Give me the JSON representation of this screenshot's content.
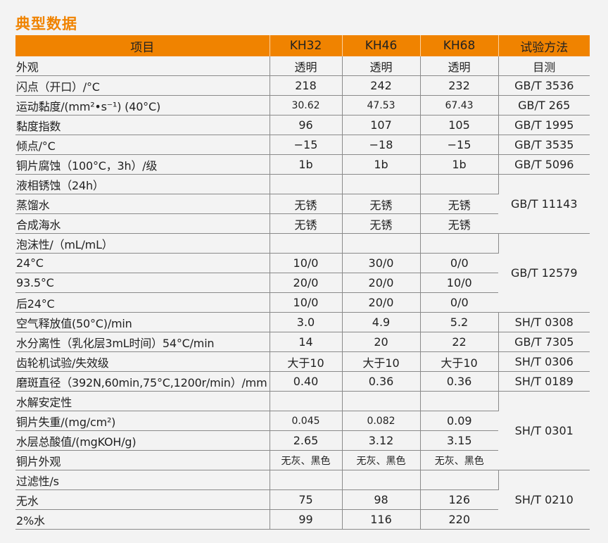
{
  "title": "典型数据",
  "colors": {
    "accent": "#f08300",
    "background": "#f3f3f3"
  },
  "table": {
    "headers": [
      "项目",
      "KH32",
      "KH46",
      "KH68",
      "试验方法"
    ],
    "rows": [
      {
        "item": "外观",
        "values": [
          "透明",
          "透明",
          "透明"
        ],
        "method": "目测"
      },
      {
        "item": "闪点（开口）/°C",
        "values": [
          "218",
          "242",
          "232"
        ],
        "method": "GB/T 3536"
      },
      {
        "item": "运动黏度/(mm²•s⁻¹) (40°C)",
        "values": [
          "30.62",
          "47.53",
          "67.43"
        ],
        "method": "GB/T 265"
      },
      {
        "item": "黏度指数",
        "values": [
          "96",
          "107",
          "105"
        ],
        "method": "GB/T 1995"
      },
      {
        "item": "倾点/°C",
        "values": [
          "−15",
          "−18",
          "−15"
        ],
        "method": "GB/T 3535"
      },
      {
        "item": "铜片腐蚀（100°C，3h）/级",
        "values": [
          "1b",
          "1b",
          "1b"
        ],
        "method": "GB/T 5096"
      },
      {
        "item": "液相锈蚀（24h）",
        "values": [
          "",
          "",
          ""
        ],
        "method": "GB/T 11143"
      },
      {
        "item": "蒸馏水",
        "values": [
          "无锈",
          "无锈",
          "无锈"
        ],
        "method": null
      },
      {
        "item": "合成海水",
        "values": [
          "无锈",
          "无锈",
          "无锈"
        ],
        "method": null
      },
      {
        "item": "泡沫性/（mL/mL）",
        "values": [
          "",
          "",
          ""
        ],
        "method": "GB/T 12579"
      },
      {
        "item": "24°C",
        "values": [
          "10/0",
          "30/0",
          "0/0"
        ],
        "method": null
      },
      {
        "item": "93.5°C",
        "values": [
          "20/0",
          "20/0",
          "10/0"
        ],
        "method": null
      },
      {
        "item": "后24°C",
        "values": [
          "10/0",
          "20/0",
          "0/0"
        ],
        "method": null
      },
      {
        "item": "空气释放值(50°C)/min",
        "values": [
          "3.0",
          "4.9",
          "5.2"
        ],
        "method": "SH/T 0308"
      },
      {
        "item": "水分离性（乳化层3mL时间）54°C/min",
        "values": [
          "14",
          "20",
          "22"
        ],
        "method": "GB/T 7305"
      },
      {
        "item": "齿轮机试验/失效级",
        "values": [
          "大于10",
          "大于10",
          "大于10"
        ],
        "method": "SH/T 0306"
      },
      {
        "item": "磨斑直径（392N,60min,75°C,1200r/min）/mm",
        "values": [
          "0.40",
          "0.36",
          "0.36"
        ],
        "method": "SH/T 0189"
      },
      {
        "item": "水解安定性",
        "values": [
          "",
          "",
          ""
        ],
        "method": "SH/T 0301"
      },
      {
        "item": "铜片失重/(mg/cm²)",
        "values": [
          "0.045",
          "0.082",
          "0.09"
        ],
        "method": null
      },
      {
        "item": "水层总酸值/(mgKOH/g)",
        "values": [
          "2.65",
          "3.12",
          "3.15"
        ],
        "method": null
      },
      {
        "item": "铜片外观",
        "values": [
          "无灰、黑色",
          "无灰、黑色",
          "无灰、黑色"
        ],
        "method": null
      },
      {
        "item": "过滤性/s",
        "values": [
          "",
          "",
          ""
        ],
        "method": "SH/T 0210"
      },
      {
        "item": "无水",
        "values": [
          "75",
          "98",
          "126"
        ],
        "method": null
      },
      {
        "item": "2%水",
        "values": [
          "99",
          "116",
          "220"
        ],
        "method": null
      }
    ]
  }
}
